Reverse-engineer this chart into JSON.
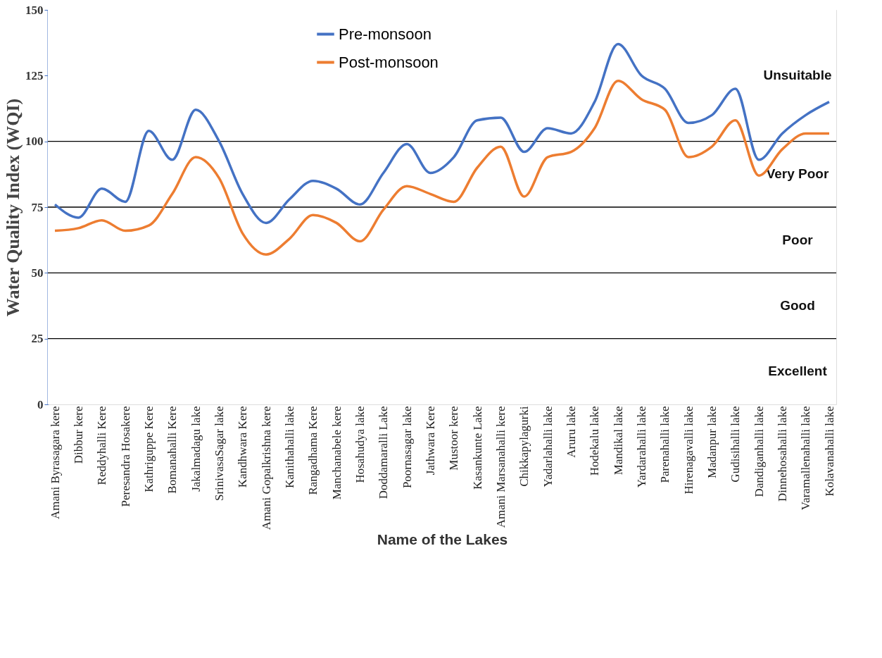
{
  "chart_data": {
    "type": "line",
    "xlabel": "Name  of the Lakes",
    "ylabel": "Water Quality Index (WQI)",
    "categories": [
      "Amani Byrasagara kere",
      "Dibbur kere",
      "Reddyhalli Kere",
      "Peresandra Hosakere",
      "Kathriguppe Kere",
      "Bomanahalli Kere",
      "Jakalmadagu lake",
      "SrinivasaSagar lake",
      "Kandhwara Kere",
      "Amani Gopalkrishna kere",
      "Kanithahalli lake",
      "Rangadhama Kere",
      "Manchanabele kere",
      "Hosahudya lake",
      "Doddamaralli Lake",
      "Poornasagar lake",
      "Jathwara Kere",
      "Mustoor kere",
      "Kasankunte Lake",
      "Amani Marsanahalli kere",
      "Chikkapylagurki",
      "Yadarlahalli lake",
      "Aruru lake",
      "Hodekalu lake",
      "Mandikal lake",
      "Yardarahalli lake",
      "Parenahalli lake",
      "Hirenagavalli lake",
      "Madanpur lake",
      "Gudisihalli lake",
      "Dandiganhalli lake",
      "Dinnehosahalli lake",
      "Varamallenahalli lake",
      "Kolavanahalli lake"
    ],
    "series": [
      {
        "name": "Pre-monsoon",
        "color": "#4472c4",
        "values": [
          76,
          71,
          82,
          77,
          104,
          93,
          112,
          100,
          80,
          69,
          78,
          85,
          82,
          76,
          88,
          99,
          88,
          94,
          108,
          109,
          96,
          105,
          103,
          115,
          137,
          125,
          120,
          107,
          110,
          120,
          93,
          103,
          110,
          115
        ]
      },
      {
        "name": "Post-monsoon",
        "color": "#ed7d31",
        "values": [
          66,
          67,
          70,
          66,
          68,
          80,
          94,
          86,
          65,
          57,
          63,
          72,
          69,
          62,
          74,
          83,
          80,
          77,
          90,
          98,
          79,
          94,
          96,
          105,
          123,
          116,
          112,
          94,
          98,
          108,
          87,
          97,
          103,
          103
        ]
      }
    ],
    "ylim": [
      0,
      150
    ],
    "yticks": [
      0,
      25,
      50,
      75,
      100,
      125,
      150
    ],
    "ref_lines": [
      {
        "axis": "y",
        "value": 25,
        "color": "#000000"
      },
      {
        "axis": "y",
        "value": 50,
        "color": "#000000"
      },
      {
        "axis": "y",
        "value": 75,
        "color": "#000000"
      },
      {
        "axis": "y",
        "value": 100,
        "color": "#000000"
      }
    ],
    "bands": [
      {
        "axis": "y",
        "from": 100,
        "to": 150,
        "label": "Unsuitable",
        "color": "#ffffff"
      },
      {
        "axis": "y",
        "from": 75,
        "to": 100,
        "label": "Very Poor",
        "color": "#ffffff"
      },
      {
        "axis": "y",
        "from": 50,
        "to": 75,
        "label": "Poor",
        "color": "#ffffff"
      },
      {
        "axis": "y",
        "from": 25,
        "to": 50,
        "label": "Good",
        "color": "#ffffff"
      },
      {
        "axis": "y",
        "from": 0,
        "to": 25,
        "label": "Excellent",
        "color": "#ffffff"
      }
    ],
    "legend": "top",
    "marker": "none",
    "line_style": "solid"
  }
}
